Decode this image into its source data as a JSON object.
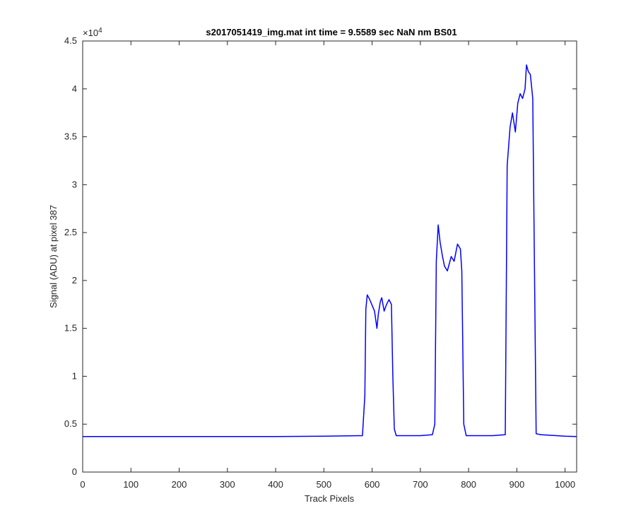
{
  "chart_data": {
    "type": "line",
    "title": "s2017051419_img.mat int time = 9.5589 sec  NaN nm BS01",
    "xlabel": "Track Pixels",
    "ylabel": "Signal (ADU) at pixel 387",
    "xlim": [
      0,
      1024
    ],
    "ylim": [
      0,
      45000
    ],
    "x_ticks": [
      0,
      100,
      200,
      300,
      400,
      500,
      600,
      700,
      800,
      900,
      1000
    ],
    "x_tick_labels": [
      "0",
      "100",
      "200",
      "300",
      "400",
      "500",
      "600",
      "700",
      "800",
      "900",
      "1000"
    ],
    "y_ticks": [
      0,
      5000,
      10000,
      15000,
      20000,
      25000,
      30000,
      35000,
      40000,
      45000
    ],
    "y_tick_labels": [
      "0",
      "0.5",
      "1",
      "1.5",
      "2",
      "2.5",
      "3",
      "3.5",
      "4",
      "4.5"
    ],
    "y_exponent_base": "×10",
    "y_exponent_power": "4",
    "grid": false,
    "line_color": "#0000ff",
    "series": [
      {
        "x": [
          0,
          100,
          200,
          300,
          400,
          500,
          580,
          585,
          587,
          590,
          595,
          600,
          605,
          610,
          613,
          617,
          620,
          625,
          630,
          635,
          640,
          643,
          646,
          650,
          700,
          725,
          730,
          733,
          737,
          741,
          746,
          750,
          756,
          764,
          770,
          777,
          783,
          786,
          790,
          795,
          850,
          876,
          880,
          886,
          891,
          897,
          902,
          907,
          912,
          917,
          920,
          924,
          928,
          933,
          940,
          950,
          1000,
          1024
        ],
        "y": [
          3700,
          3700,
          3700,
          3700,
          3700,
          3750,
          3800,
          8000,
          17000,
          18500,
          18000,
          17400,
          16800,
          15000,
          16500,
          17800,
          18200,
          16800,
          17500,
          18000,
          17500,
          10000,
          4500,
          3800,
          3800,
          3900,
          5000,
          22000,
          25800,
          24000,
          22500,
          21500,
          21000,
          22500,
          22000,
          23800,
          23300,
          21000,
          5000,
          3800,
          3800,
          3900,
          32000,
          36000,
          37500,
          35500,
          38500,
          39500,
          39000,
          40000,
          42500,
          41800,
          41500,
          39000,
          4000,
          3900,
          3750,
          3700
        ]
      }
    ]
  }
}
